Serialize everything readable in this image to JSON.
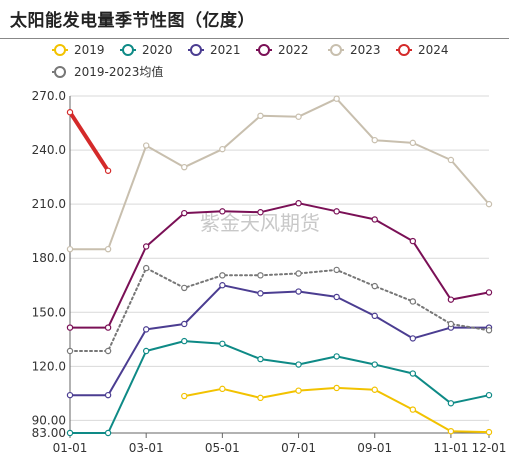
{
  "chart_data": {
    "type": "line",
    "title": "太阳能发电量季节性图（亿度）",
    "xlabel": "",
    "ylabel": "",
    "x_ticks": [
      "01-01",
      "03-01",
      "05-01",
      "07-01",
      "09-01",
      "11-01",
      "12-01"
    ],
    "y_ticks": [
      "83.00",
      "90.00",
      "120.0",
      "150.0",
      "180.0",
      "210.0",
      "240.0",
      "270.0"
    ],
    "ylim": [
      83,
      270
    ],
    "grid": "horizontal",
    "legend_position": "top",
    "watermark": "紫金天风期货",
    "months": [
      "01-01",
      "02-01",
      "03-01",
      "04-01",
      "05-01",
      "06-01",
      "07-01",
      "08-01",
      "09-01",
      "10-01",
      "11-01",
      "12-01"
    ],
    "series": [
      {
        "name": "2019",
        "color": "#f2c200",
        "style": "solid",
        "values": [
          null,
          null,
          null,
          103.5,
          107.5,
          102.5,
          106.5,
          108.0,
          107.0,
          96.0,
          84.0,
          83.5
        ]
      },
      {
        "name": "2020",
        "color": "#0e8a86",
        "style": "solid",
        "values": [
          83.0,
          83.0,
          128.5,
          134.0,
          132.5,
          124.0,
          121.0,
          125.5,
          121.0,
          116.0,
          99.5,
          104.0
        ]
      },
      {
        "name": "2021",
        "color": "#4b3d91",
        "style": "solid",
        "values": [
          104.0,
          104.0,
          140.5,
          143.5,
          165.0,
          160.5,
          161.5,
          158.5,
          148.0,
          135.5,
          141.5,
          141.5
        ]
      },
      {
        "name": "2022",
        "color": "#7a1056",
        "style": "solid",
        "values": [
          141.5,
          141.5,
          186.5,
          205.0,
          206.0,
          205.5,
          210.5,
          206.0,
          201.5,
          189.5,
          157.0,
          161.0
        ]
      },
      {
        "name": "2023",
        "color": "#c8bfae",
        "style": "solid",
        "values": [
          185.0,
          185.0,
          242.5,
          230.5,
          240.5,
          259.0,
          258.5,
          268.5,
          245.5,
          244.0,
          234.5,
          210.0
        ]
      },
      {
        "name": "2024",
        "color": "#d42a2a",
        "style": "solid",
        "values": [
          261.0,
          228.5,
          null,
          null,
          null,
          null,
          null,
          null,
          null,
          null,
          null,
          null
        ]
      },
      {
        "name": "2019-2023均值",
        "color": "#777777",
        "style": "dotted",
        "values": [
          128.5,
          128.5,
          174.5,
          163.5,
          170.5,
          170.5,
          171.5,
          173.5,
          164.5,
          156.0,
          143.5,
          140.0
        ]
      }
    ]
  }
}
